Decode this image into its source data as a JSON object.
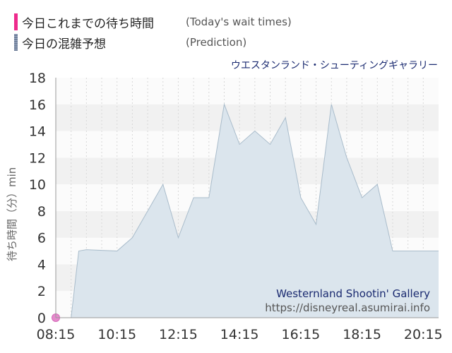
{
  "legend": {
    "today_label": "今日これまでの待ち時間",
    "today_sub": "(Today's wait times)",
    "prediction_label": "今日の混雑予想",
    "prediction_sub": "(Prediction)"
  },
  "colors": {
    "today": "#ee2a8c",
    "prediction": "#6f7f9a",
    "area_fill": "#dbe5ed",
    "area_stroke": "#a9bccb",
    "today_point": "#e68acd"
  },
  "attraction_name": "ウエスタンランド・シューティングギャラリー",
  "watermark": {
    "title": "Westernland Shootin' Gallery",
    "url": "https://disneyreal.asumirai.info"
  },
  "chart_data": {
    "type": "area",
    "title": "",
    "ylabel": "待ち時間（分）min",
    "ylim": [
      0,
      18
    ],
    "yticks": [
      0,
      2,
      4,
      6,
      8,
      10,
      12,
      14,
      16,
      18
    ],
    "xlim": [
      "08:15",
      "20:45"
    ],
    "xticks": [
      "08:15",
      "10:15",
      "12:15",
      "14:15",
      "16:15",
      "18:15",
      "20:15"
    ],
    "grid": true,
    "series": [
      {
        "values": [
          {
            "x": "08:15",
            "y": 0
          },
          {
            "x": "08:45",
            "y": 0
          },
          {
            "x": "09:00",
            "y": 5
          },
          {
            "x": "09:15",
            "y": 5.1
          },
          {
            "x": "10:15",
            "y": 5
          },
          {
            "x": "10:45",
            "y": 6
          },
          {
            "x": "11:15",
            "y": 8
          },
          {
            "x": "11:45",
            "y": 10
          },
          {
            "x": "12:15",
            "y": 6
          },
          {
            "x": "12:45",
            "y": 9
          },
          {
            "x": "13:15",
            "y": 9
          },
          {
            "x": "13:45",
            "y": 16
          },
          {
            "x": "14:15",
            "y": 13
          },
          {
            "x": "14:45",
            "y": 14
          },
          {
            "x": "15:15",
            "y": 13
          },
          {
            "x": "15:45",
            "y": 15
          },
          {
            "x": "16:15",
            "y": 9
          },
          {
            "x": "16:45",
            "y": 7
          },
          {
            "x": "17:15",
            "y": 16
          },
          {
            "x": "17:45",
            "y": 12
          },
          {
            "x": "18:15",
            "y": 9
          },
          {
            "x": "18:45",
            "y": 10
          },
          {
            "x": "19:15",
            "y": 5
          },
          {
            "x": "19:45",
            "y": 5
          },
          {
            "x": "20:45",
            "y": 5
          }
        ]
      },
      {
        "values": [
          {
            "x": "08:15",
            "y": 0
          }
        ]
      }
    ]
  }
}
